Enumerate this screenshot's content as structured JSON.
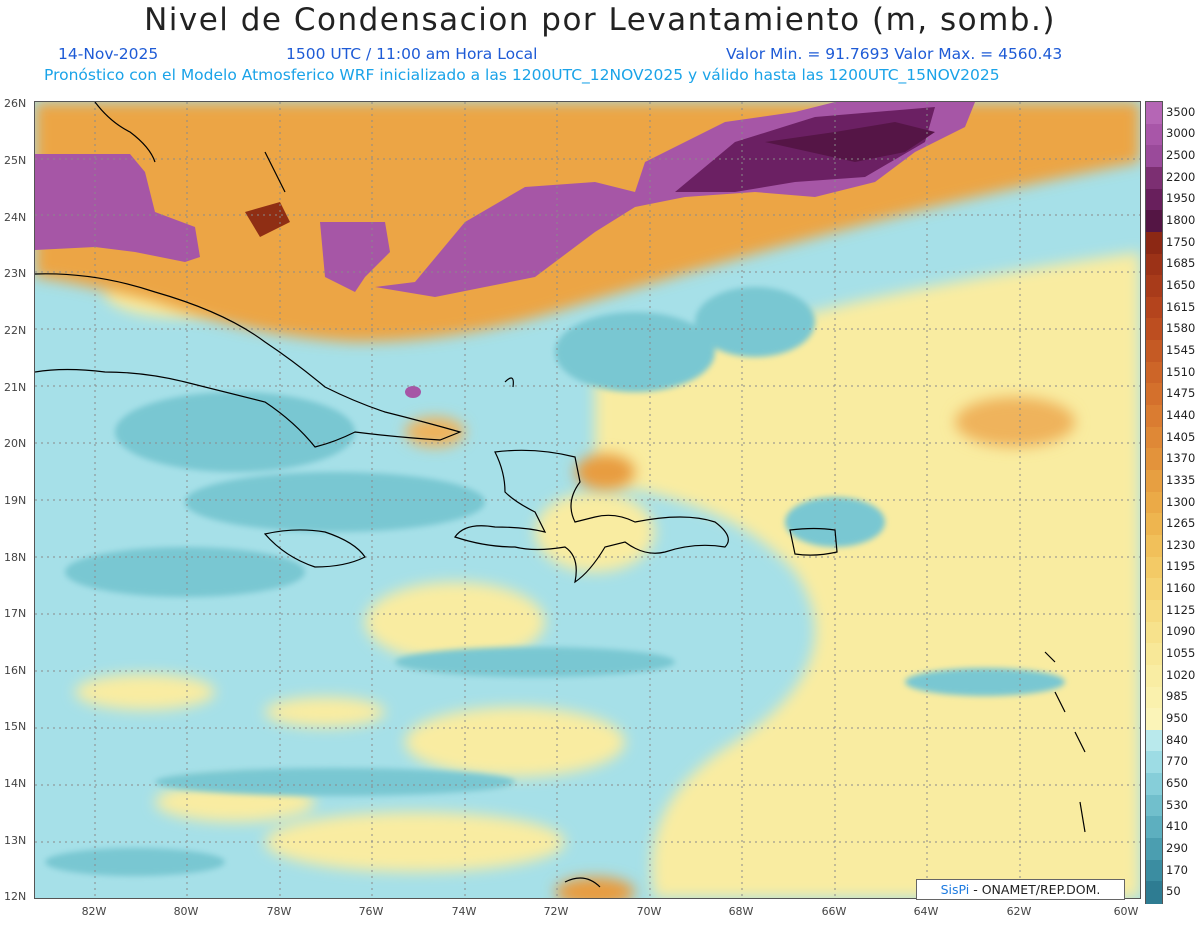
{
  "header": {
    "title": "Nivel de Condensacion por Levantamiento (m, somb.)",
    "date": "14-Nov-2025",
    "time": "1500 UTC / 11:00 am Hora Local",
    "min_max": "Valor Min. = 91.7693  Valor Max. = 4560.43",
    "model_info": "Pronóstico con el Modelo Atmosferico WRF inicializado a las 1200UTC_12NOV2025 y válido hasta las  1200UTC_15NOV2025"
  },
  "map": {
    "lat_labels": [
      "26N",
      "25N",
      "24N",
      "23N",
      "22N",
      "21N",
      "20N",
      "19N",
      "18N",
      "17N",
      "16N",
      "15N",
      "14N",
      "13N",
      "12N"
    ],
    "lon_labels": [
      "82W",
      "80W",
      "78W",
      "76W",
      "74W",
      "72W",
      "70W",
      "68W",
      "66W",
      "64W",
      "62W",
      "60W"
    ]
  },
  "colorbar": {
    "ticks": [
      "3500",
      "3000",
      "2500",
      "2200",
      "1950",
      "1800",
      "1750",
      "1685",
      "1650",
      "1615",
      "1580",
      "1545",
      "1510",
      "1475",
      "1440",
      "1405",
      "1370",
      "1335",
      "1300",
      "1265",
      "1230",
      "1195",
      "1160",
      "1125",
      "1090",
      "1055",
      "1020",
      "985",
      "950",
      "840",
      "770",
      "650",
      "530",
      "410",
      "290",
      "170",
      "50"
    ],
    "colors": [
      "#b566b5",
      "#a856a8",
      "#9a4a9a",
      "#7c2f72",
      "#681f5c",
      "#541544",
      "#8c2814",
      "#9c3217",
      "#a83b1a",
      "#b4441d",
      "#bd4e20",
      "#c55a24",
      "#cd6528",
      "#d4702c",
      "#da7c31",
      "#df8836",
      "#e3933b",
      "#e79f41",
      "#ebaa47",
      "#eeb54f",
      "#f1c05a",
      "#f3ca66",
      "#f5d373",
      "#f6db80",
      "#f7e28c",
      "#f8e898",
      "#f9eda3",
      "#faf1ad",
      "#fbf4b8",
      "#b9e9ec",
      "#9ddce4",
      "#86ced9",
      "#71bfcc",
      "#5dafbf",
      "#4b9eb0",
      "#3b8da1",
      "#2e7c92"
    ]
  },
  "credit": {
    "brand": "SisPi",
    "org": " - ONAMET/REP.DOM."
  }
}
